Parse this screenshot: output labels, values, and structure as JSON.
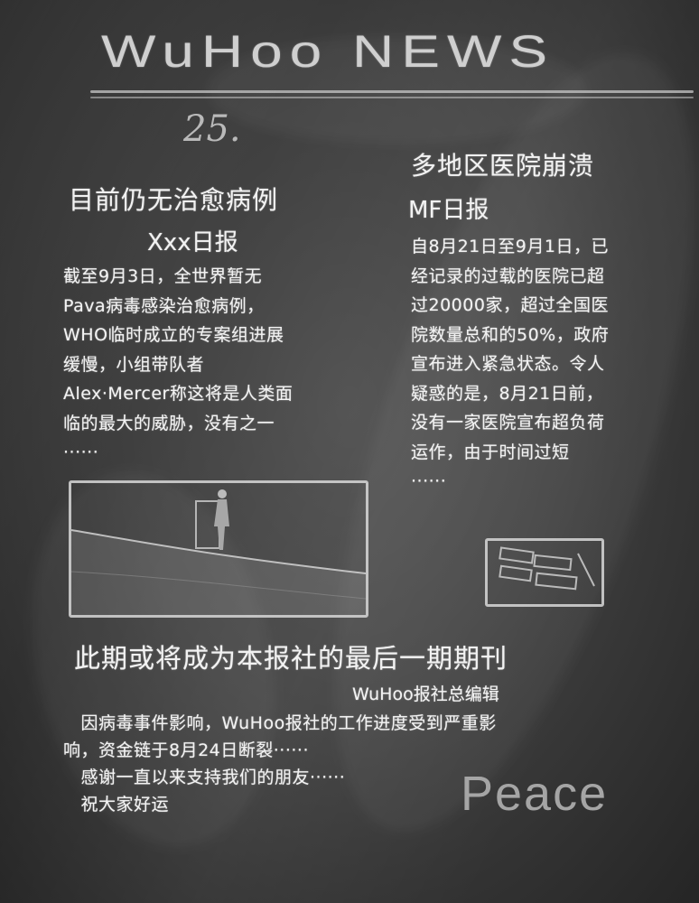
{
  "masthead": {
    "title": "WuHoo NEWS",
    "issue_number": "25."
  },
  "left_article": {
    "headline": "目前仍无治愈病例",
    "source": "Xxx日报",
    "body": "截至9月3日，全世界暂无\nPava病毒感染治愈病例，\nWHO临时成立的专案组进展\n缓慢，小组带队者\nAlex·Mercer称这将是人类面\n临的最大的威胁，没有之一\n······"
  },
  "right_article": {
    "headline": "多地区医院崩溃",
    "source": "MF日报",
    "body": "自8月21日至9月1日，已\n经记录的过载的医院已超\n过20000家，超过全国医\n院数量总和的50%，政府\n宣布进入紧急状态。令人\n疑惑的是，8月21日前，\n没有一家医院宣布超负荷\n运作，由于时间过短\n······"
  },
  "bottom_article": {
    "headline": "此期或将成为本报社的最后一期期刊",
    "byline": "WuHoo报社总编辑",
    "body": "　因病毒事件影响，WuHoo报社的工作进度受到严重影\n响，资金链于8月24日断裂······\n　感谢一直以来支持我们的朋友······\n　祝大家好运"
  },
  "signoff": "Peace",
  "colors": {
    "board": "#393939",
    "chalk": "#f2f2f2",
    "dim_chalk": "#a5a5a5"
  }
}
